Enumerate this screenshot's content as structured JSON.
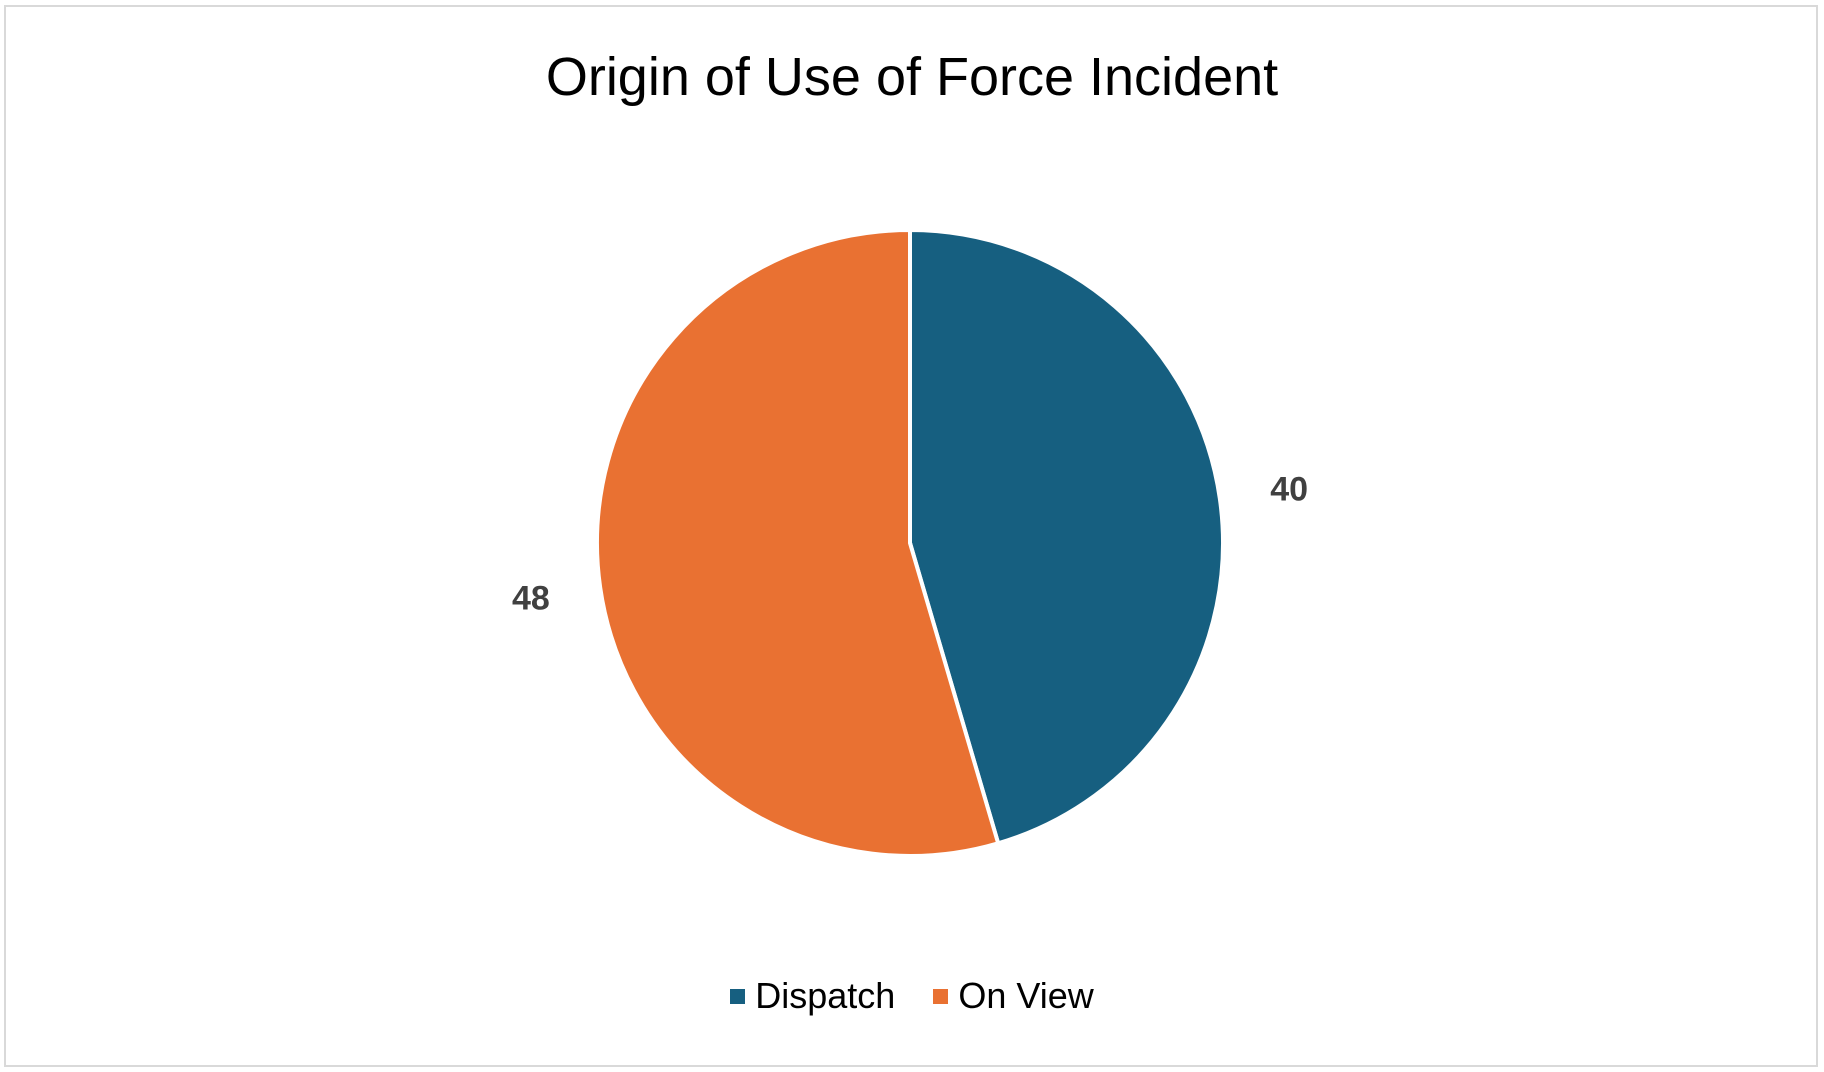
{
  "chart_data": {
    "type": "pie",
    "title": "Origin of Use of Force Incident",
    "categories": [
      "Dispatch",
      "On View"
    ],
    "values": [
      40,
      48
    ],
    "colors": [
      "#165f80",
      "#e97132"
    ],
    "data_labels": [
      "40",
      "48"
    ],
    "legend_position": "bottom"
  }
}
